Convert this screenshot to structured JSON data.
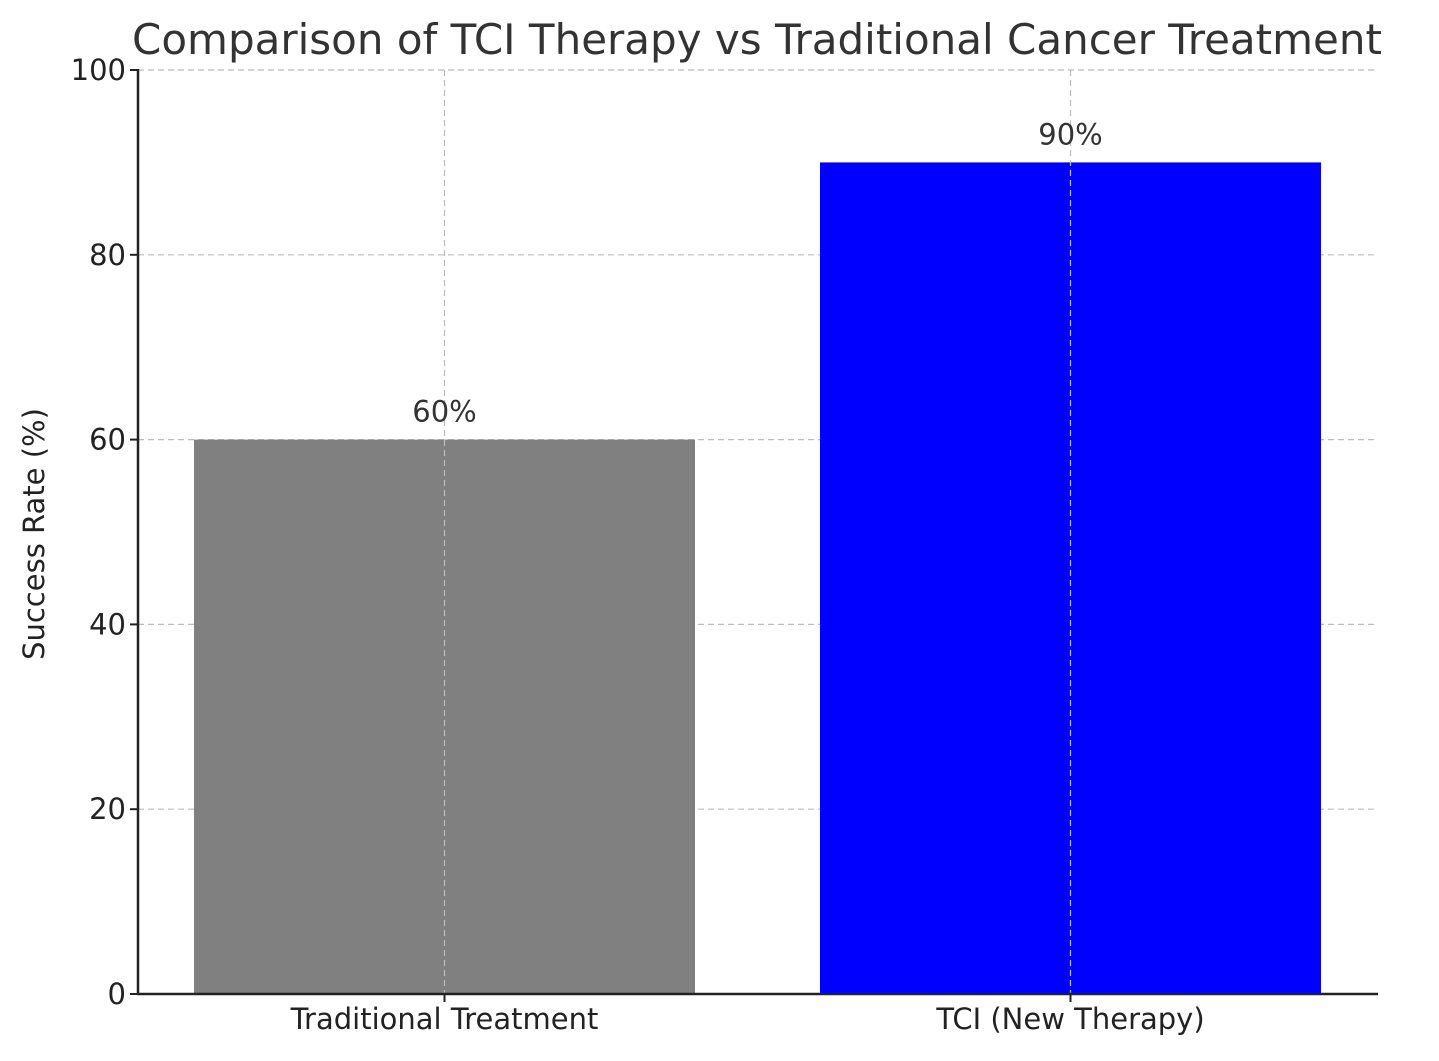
{
  "chart_data": {
    "type": "bar",
    "title": "Comparison of TCI Therapy vs Traditional Cancer Treatment",
    "xlabel": "",
    "ylabel": "Success Rate (%)",
    "categories": [
      "Traditional Treatment",
      "TCI (New Therapy)"
    ],
    "values": [
      60,
      90
    ],
    "value_labels": [
      "60%",
      "90%"
    ],
    "colors": [
      "#808080",
      "#0000ff"
    ],
    "ylim": [
      0,
      100
    ],
    "yticks": [
      0,
      20,
      40,
      60,
      80,
      100
    ],
    "ytick_labels": [
      "0",
      "20",
      "40",
      "60",
      "80",
      "100"
    ],
    "grid": true,
    "legend": false
  }
}
